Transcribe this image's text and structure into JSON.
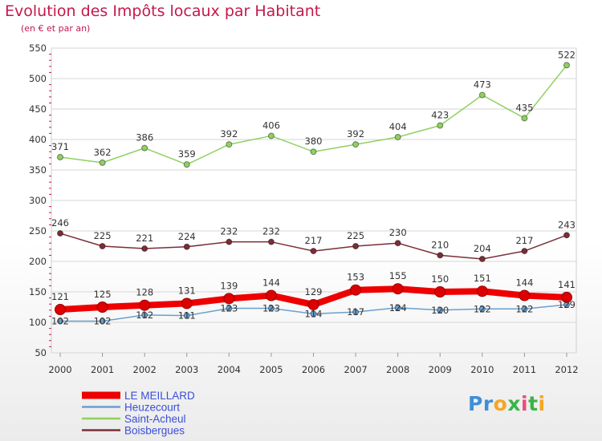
{
  "title": "Evolution des Impôts locaux par Habitant",
  "subtitle": "(en € et par an)",
  "logo": {
    "text": "Proxiti",
    "letters": [
      {
        "ch": "P",
        "color": "#3d8fd8"
      },
      {
        "ch": "r",
        "color": "#3d8fd8"
      },
      {
        "ch": "o",
        "color": "#f5a623"
      },
      {
        "ch": "x",
        "color": "#39b54a"
      },
      {
        "ch": "i",
        "color": "#e94e77"
      },
      {
        "ch": "t",
        "color": "#39b54a"
      },
      {
        "ch": "i",
        "color": "#f5a623"
      }
    ]
  },
  "chart_data": {
    "type": "line",
    "title": "Evolution des Impôts locaux par Habitant",
    "subtitle": "(en € et par an)",
    "xlabel": "",
    "ylabel": "",
    "x": [
      "2000",
      "2001",
      "2002",
      "2003",
      "2004",
      "2005",
      "2006",
      "2007",
      "2008",
      "2009",
      "2010",
      "2011",
      "2012"
    ],
    "ylim": [
      50,
      550
    ],
    "yticks": [
      50,
      100,
      150,
      200,
      250,
      300,
      350,
      400,
      450,
      500,
      550
    ],
    "grid": "horizontal",
    "legend_position": "bottom-left",
    "series": [
      {
        "name": "LE MEILLARD",
        "color": "#ee0000",
        "emphasis": true,
        "values": [
          121,
          125,
          128,
          131,
          139,
          144,
          129,
          153,
          155,
          150,
          151,
          144,
          141
        ],
        "labels": [
          "121",
          "125",
          "128",
          "131",
          "139",
          "144",
          "129",
          "153",
          "155",
          "150",
          "151",
          "144",
          "141"
        ]
      },
      {
        "name": "Heuzecourt",
        "color": "#6a9fcf",
        "emphasis": false,
        "values": [
          102,
          102,
          112,
          111,
          123,
          123,
          114,
          117,
          124,
          120,
          122,
          122,
          129
        ],
        "labels": [
          "102",
          "102",
          "112",
          "111",
          "123",
          "123",
          "114",
          "117",
          "124",
          "120",
          "122",
          "122",
          "129"
        ]
      },
      {
        "name": "Saint-Acheul",
        "color": "#90d060",
        "emphasis": false,
        "values": [
          371,
          362,
          386,
          359,
          392,
          406,
          380,
          392,
          404,
          423,
          473,
          435,
          522
        ],
        "labels": [
          "371",
          "362",
          "386",
          "359",
          "392",
          "406",
          "380",
          "392",
          "404",
          "423",
          "473",
          "435",
          "522"
        ]
      },
      {
        "name": "Boisbergues",
        "color": "#7a2e36",
        "emphasis": false,
        "values": [
          246,
          225,
          221,
          224,
          232,
          232,
          217,
          225,
          230,
          210,
          204,
          217,
          243
        ],
        "labels": [
          "246",
          "225",
          "221",
          "224",
          "232",
          "232",
          "217",
          "225",
          "230",
          "210",
          "204",
          "217",
          "243"
        ]
      }
    ]
  }
}
